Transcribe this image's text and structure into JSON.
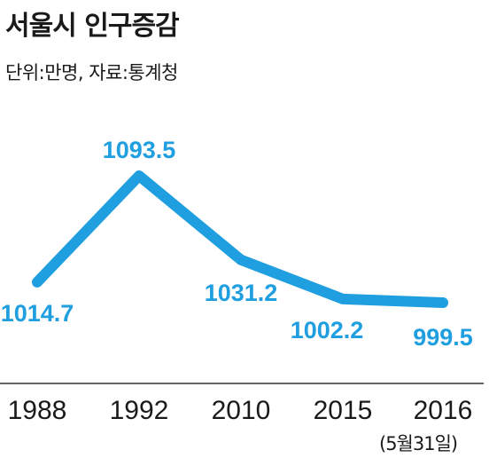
{
  "chart_data": {
    "type": "line",
    "title": "서울시 인구증감",
    "subtitle": "단위:만명, 자료:통계청",
    "categories": [
      "1988",
      "1992",
      "2010",
      "2015",
      "2016"
    ],
    "values": [
      1014.7,
      1093.5,
      1031.2,
      1002.2,
      999.5
    ],
    "value_labels": [
      "1014.7",
      "1093.5",
      "1031.2",
      "1002.2",
      "999.5"
    ],
    "category_note": "(5월31일)",
    "grid": false,
    "legend": "none",
    "line_color": "#1f9ee0"
  }
}
